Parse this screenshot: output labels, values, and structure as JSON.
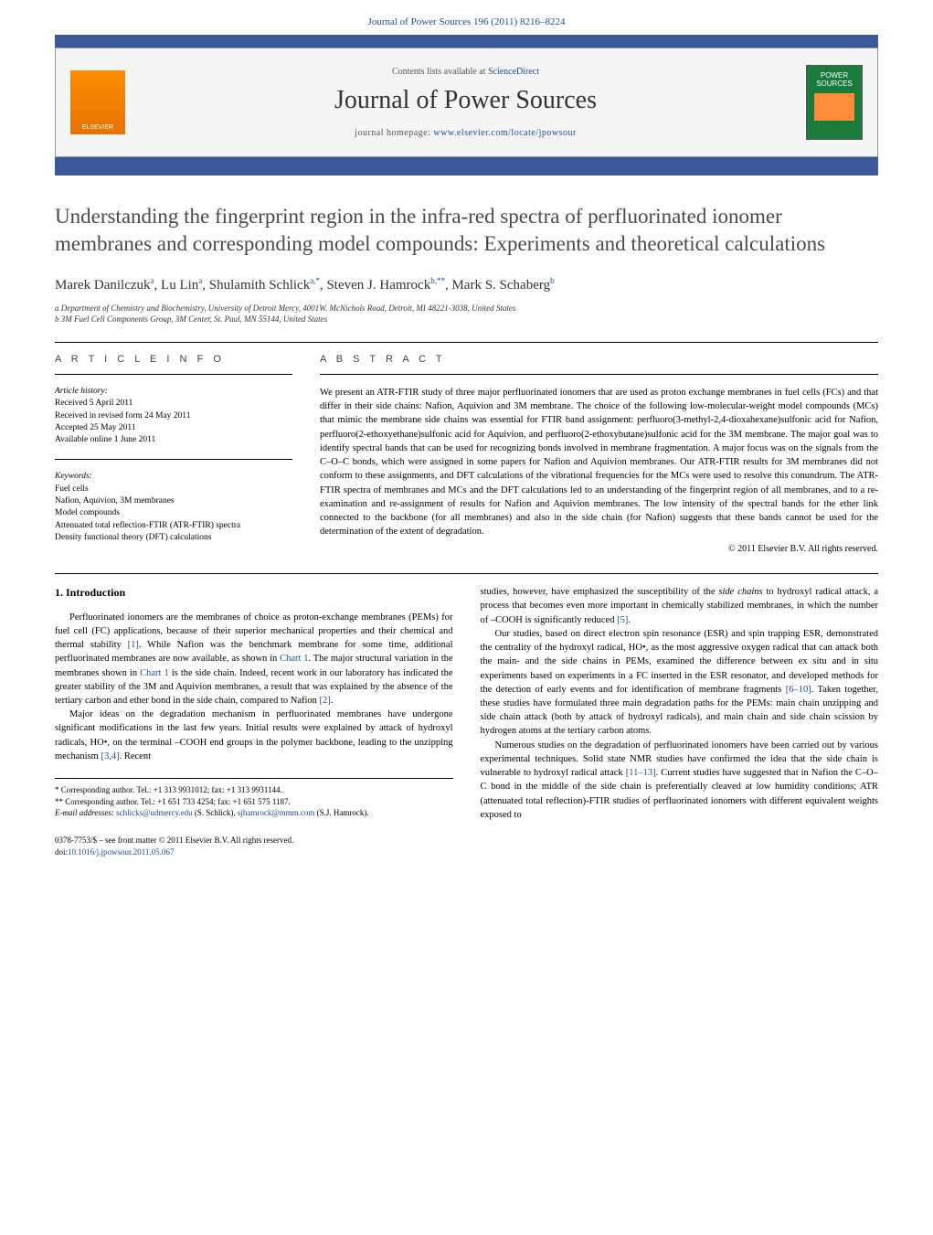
{
  "header": {
    "citation": "Journal of Power Sources 196 (2011) 8216–8224",
    "contents_prefix": "Contents lists available at ",
    "contents_link": "ScienceDirect",
    "journal_name": "Journal of Power Sources",
    "homepage_prefix": "journal homepage: ",
    "homepage_url": "www.elsevier.com/locate/jpowsour",
    "elsevier_label": "ELSEVIER",
    "cover_text": "POWER SOURCES"
  },
  "title": "Understanding the fingerprint region in the infra-red spectra of perfluorinated ionomer membranes and corresponding model compounds: Experiments and theoretical calculations",
  "authors_html": "Marek Danilczuk<sup>a</sup>, Lu Lin<sup>a</sup>, Shulamith Schlick<sup>a,*</sup>, Steven J. Hamrock<sup>b,**</sup>, Mark S. Schaberg<sup>b</sup>",
  "affiliations": {
    "a": "a Department of Chemistry and Biochemistry, University of Detroit Mercy, 4001W. McNichols Road, Detroit, MI 48221-3038, United States",
    "b": "b 3M Fuel Cell Components Group, 3M Center, St. Paul, MN 55144, United States"
  },
  "info": {
    "heading": "A R T I C L E   I N F O",
    "history_head": "Article history:",
    "received": "Received 5 April 2011",
    "revised": "Received in revised form 24 May 2011",
    "accepted": "Accepted 25 May 2011",
    "online": "Available online 1 June 2011",
    "keywords_head": "Keywords:",
    "kw1": "Fuel cells",
    "kw2": "Nafion, Aquivion, 3M membranes",
    "kw3": "Model compounds",
    "kw4": "Attenuated total reflection-FTIR (ATR-FTIR) spectra",
    "kw5": "Density functional theory (DFT) calculations"
  },
  "abstract": {
    "heading": "A B S T R A C T",
    "text": "We present an ATR-FTIR study of three major perfluorinated ionomers that are used as proton exchange membranes in fuel cells (FCs) and that differ in their side chains: Nafion, Aquivion and 3M membrane. The choice of the following low-molecular-weight model compounds (MCs) that mimic the membrane side chains was essential for FTIR band assignment: perfluoro(3-methyl-2,4-dioxahexane)sulfonic acid for Nafion, perfluoro(2-ethoxyethane)sulfonic acid for Aquivion, and perfluoro(2-ethoxybutane)sulfonic acid for the 3M membrane. The major goal was to identify spectral bands that can be used for recognizing bonds involved in membrane fragmentation. A major focus was on the signals from the C–O–C bonds, which were assigned in some papers for Nafion and Aquivion membranes. Our ATR-FTIR results for 3M membranes did not conform to these assignments, and DFT calculations of the vibrational frequencies for the MCs were used to resolve this conundrum. The ATR-FTIR spectra of membranes and MCs and the DFT calculations led to an understanding of the fingerprint region of all membranes, and to a re-examination and re-assignment of results for Nafion and Aquivion membranes. The low intensity of the spectral bands for the ether link connected to the backbone (for all membranes) and also in the side chain (for Nafion) suggests that these bands cannot be used for the determination of the extent of degradation.",
    "copyright": "© 2011 Elsevier B.V. All rights reserved."
  },
  "body": {
    "intro_heading": "1. Introduction",
    "p1a": "Perfluorinated ionomers are the membranes of choice as proton-exchange membranes (PEMs) for fuel cell (FC) applications, because of their superior mechanical properties and their chemical and thermal stability ",
    "r1": "[1]",
    "p1b": ". While Nafion was the benchmark membrane for some time, additional perfluorinated membranes are now available, as shown in ",
    "c1": "Chart 1",
    "p1c": ". The major structural variation in the membranes shown in ",
    "c1b": "Chart 1",
    "p1d": " is the side chain. Indeed, recent work in our laboratory has indicated the greater stability of the 3M and Aquivion membranes, a result that was explained by the absence of the tertiary carbon and ether bond in the side chain, compared to Nafion ",
    "r2": "[2]",
    "p1e": ".",
    "p2a": "Major ideas on the degradation mechanism in perfluorinated membranes have undergone significant modifications in the last few years. Initial results were explained by attack of hydroxyl radicals, HO•, on the terminal –COOH end groups in the polymer backbone, leading to the unzipping mechanism ",
    "r34": "[3,4]",
    "p2b": ". Recent",
    "p3a": "studies, however, have emphasized the susceptibility of the ",
    "p3i": "side chains",
    "p3b": " to hydroxyl radical attack, a process that becomes even more important in chemically stabilized membranes, in which the number of –COOH is significantly reduced ",
    "r5": "[5]",
    "p3c": ".",
    "p4a": "Our studies, based on direct electron spin resonance (ESR) and spin trapping ESR, demonstrated the centrality of the hydroxyl radical, HO•, as the most aggressive oxygen radical that can attack both the main- and the side chains in PEMs, examined the difference between ex situ and in situ experiments based on experiments in a FC inserted in the ESR resonator, and developed methods for the detection of early events and for identification of membrane fragments ",
    "r610": "[6–10]",
    "p4b": ". Taken together, these studies have formulated three main degradation paths for the PEMs: main chain unzipping and side chain attack (both by attack of hydroxyl radicals), and main chain and side chain scission by hydrogen atoms at the tertiary carbon atoms.",
    "p5a": "Numerous studies on the degradation of perfluorinated ionomers have been carried out by various experimental techniques. Solid state NMR studies have confirmed the idea that the side chain is vulnerable to hydroxyl radical attack ",
    "r1113": "[11–13]",
    "p5b": ". Current studies have suggested that in Nafion the C–O–C bond in the middle of the side chain is preferentially cleaved at low humidity conditions; ATR (attenuated total reflection)-FTIR studies of perfluorinated ionomers with different equivalent weights exposed to"
  },
  "footnotes": {
    "corr1": "* Corresponding author. Tel.: +1 313 9931012; fax: +1 313 9931144.",
    "corr2": "** Corresponding author. Tel.: +1 651 733 4254; fax: +1 651 575 1187.",
    "email_label": "E-mail addresses: ",
    "email1": "schlicks@udmercy.edu",
    "email1_name": " (S. Schlick), ",
    "email2": "sjhamrock@mmm.com",
    "email2_name": " (S.J. Hamrock)."
  },
  "footer": {
    "issn": "0378-7753/$ – see front matter © 2011 Elsevier B.V. All rights reserved.",
    "doi_label": "doi:",
    "doi": "10.1016/j.jpowsour.2011.05.067"
  },
  "colors": {
    "link": "#1a4d8f",
    "bar": "#3b5998",
    "elsevier": "#ff8c00",
    "cover": "#1a7a3a"
  }
}
